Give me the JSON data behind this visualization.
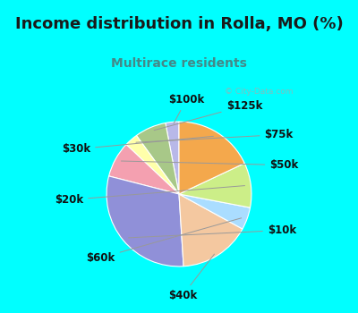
{
  "title": "Income distribution in Rolla, MO (%)",
  "subtitle": "Multirace residents",
  "watermark": "© City-Data.com",
  "labels": [
    "$100k",
    "$125k",
    "$75k",
    "$50k",
    "$10k",
    "$40k",
    "$60k",
    "$20k",
    "$30k"
  ],
  "sizes": [
    3,
    7,
    3,
    8,
    30,
    16,
    5,
    10,
    18
  ],
  "colors": [
    "#b8b8e8",
    "#a8c888",
    "#ffffaa",
    "#f4a0b0",
    "#9090d8",
    "#f4c8a0",
    "#aaddff",
    "#ccee88",
    "#f4a84c"
  ],
  "bg_color": "#00ffff",
  "chart_bg_color": "#e0f0e8",
  "title_color": "#1a1a1a",
  "subtitle_color": "#448888",
  "start_angle": 90,
  "label_fontsize": 8.5,
  "title_fontsize": 13,
  "subtitle_fontsize": 10
}
